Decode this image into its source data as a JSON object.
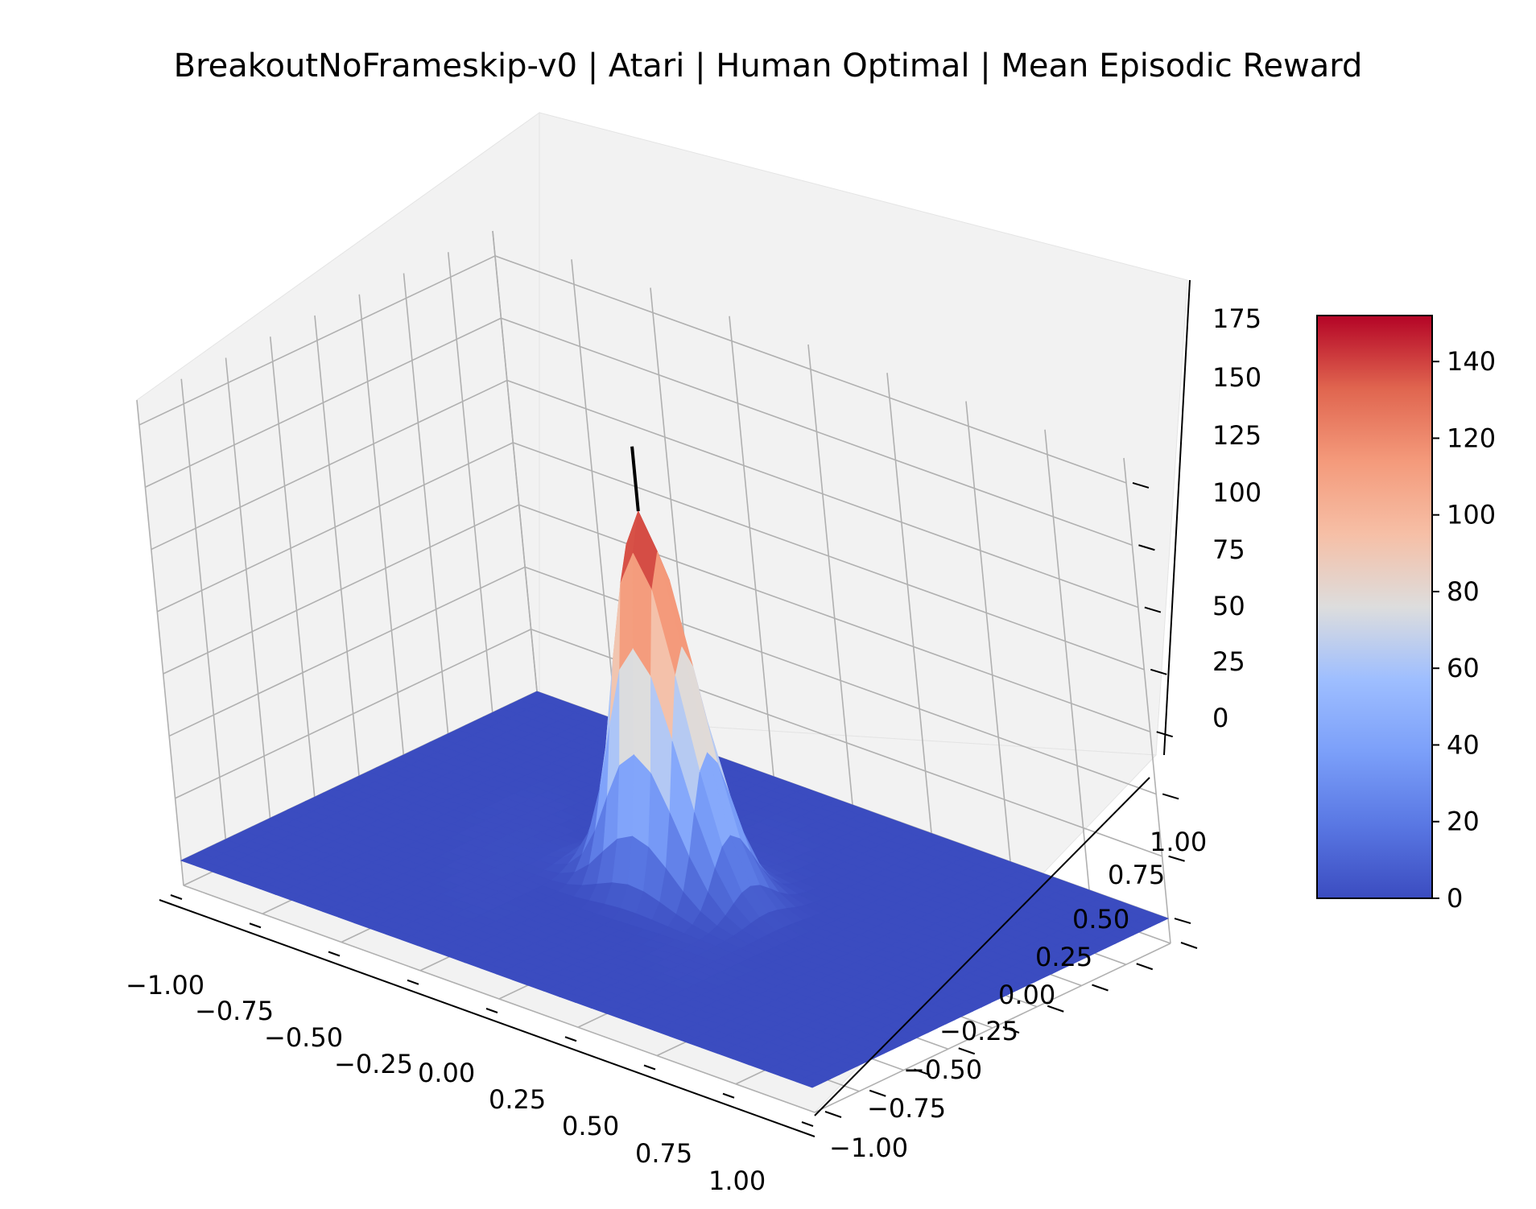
{
  "chart_data": {
    "type": "surface3d",
    "title": "BreakoutNoFrameskip-v0 | Atari | Human Optimal | Mean Episodic Reward",
    "colormap": "coolwarm",
    "colormap_colors": [
      "#3b4cc0",
      "#dddddd",
      "#b40426"
    ],
    "x_ticks": [
      "−1.00",
      "−0.75",
      "−0.50",
      "−0.25",
      "0.00",
      "0.25",
      "0.50",
      "0.75",
      "1.00"
    ],
    "y_ticks": [
      "−1.00",
      "−0.75",
      "−0.50",
      "−0.25",
      "0.00",
      "0.25",
      "0.50",
      "0.75",
      "1.00"
    ],
    "z_ticks": [
      "0",
      "25",
      "50",
      "75",
      "100",
      "125",
      "150",
      "175"
    ],
    "colorbar_ticks": [
      "0",
      "20",
      "40",
      "60",
      "80",
      "100",
      "120",
      "140"
    ],
    "xlim": [
      -1,
      1
    ],
    "ylim": [
      -1,
      1
    ],
    "zlim": [
      -10,
      185
    ],
    "color_range": [
      0,
      152
    ],
    "peak": {
      "x": 0.0,
      "y": 0.0,
      "z": 152,
      "sigma": 0.11
    },
    "optimum_marker": {
      "x": 0.0,
      "y": 0.0,
      "z_top": 178
    },
    "grid": true
  }
}
